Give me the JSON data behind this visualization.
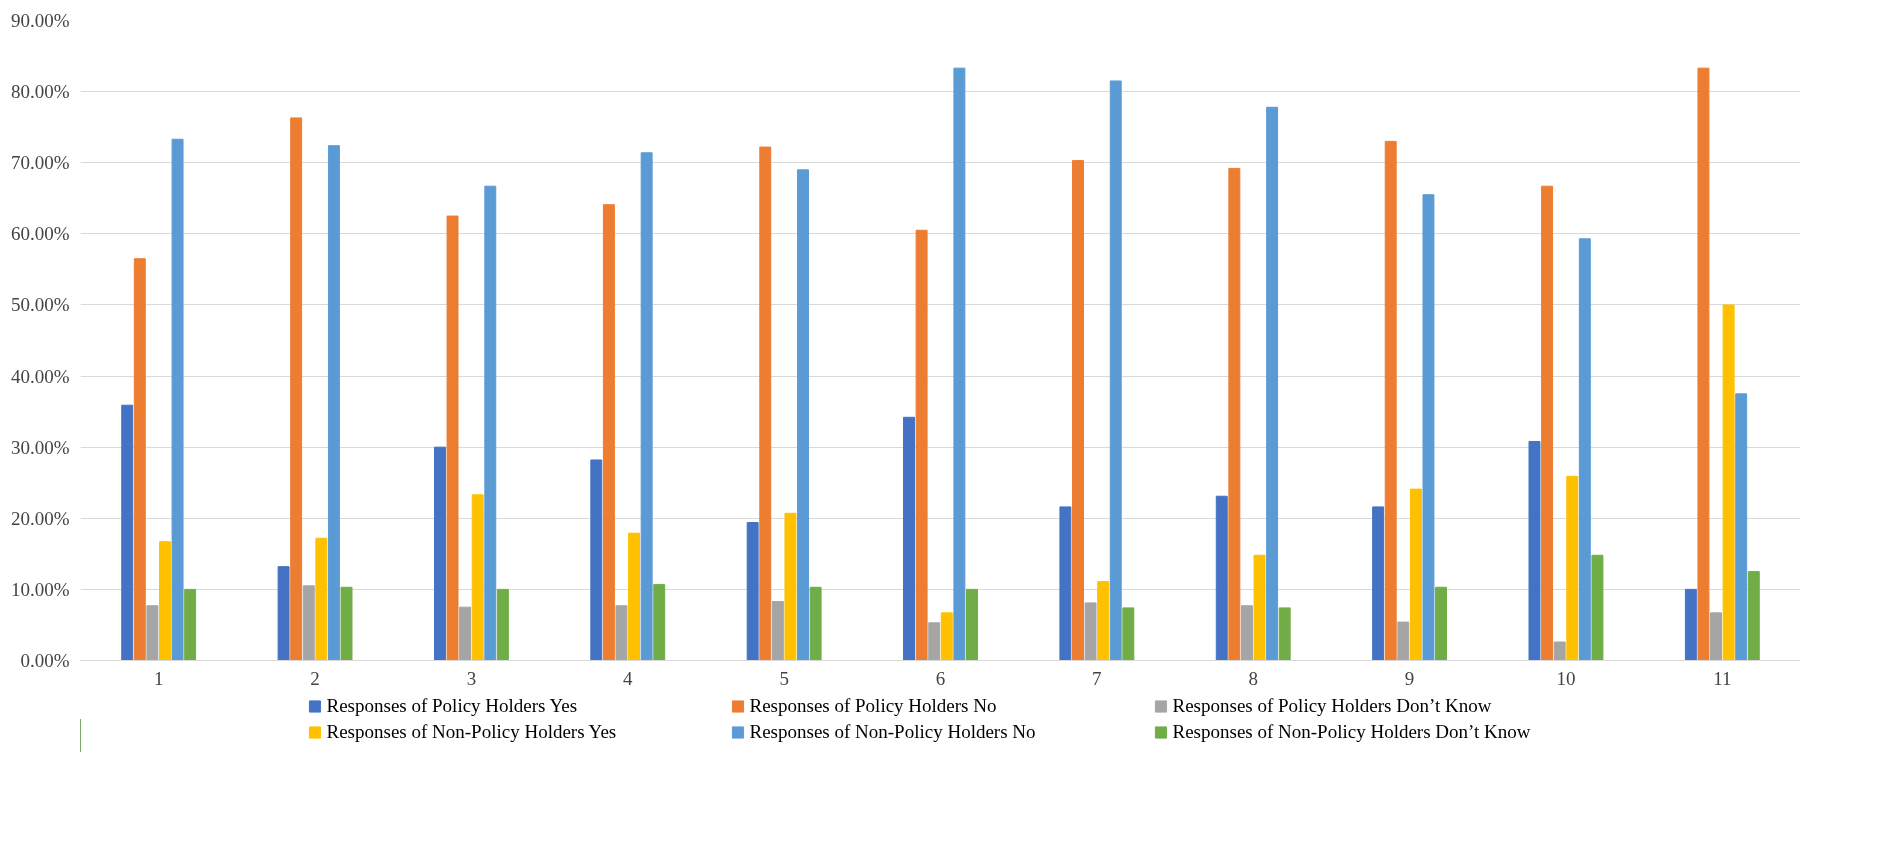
{
  "chart_data": {
    "type": "bar",
    "categories": [
      "1",
      "2",
      "3",
      "4",
      "5",
      "6",
      "7",
      "8",
      "9",
      "10",
      "11"
    ],
    "series": [
      {
        "name": "Responses of Policy Holders Yes",
        "color": "#4472c4",
        "values": [
          35.9,
          13.2,
          30.0,
          28.2,
          19.4,
          34.2,
          21.6,
          23.1,
          21.6,
          30.8,
          10.0
        ]
      },
      {
        "name": "Responses of Policy Holders No",
        "color": "#ed7d31",
        "values": [
          56.5,
          76.3,
          62.5,
          64.1,
          72.2,
          60.5,
          70.3,
          69.2,
          73.0,
          66.7,
          83.3
        ]
      },
      {
        "name": "Responses of Policy Holders Don’t Know",
        "color": "#a5a5a5",
        "values": [
          7.7,
          10.5,
          7.5,
          7.7,
          8.3,
          5.3,
          8.1,
          7.7,
          5.4,
          2.6,
          6.7
        ]
      },
      {
        "name": "Responses of Non-Policy Holders Yes",
        "color": "#ffc000",
        "values": [
          16.7,
          17.2,
          23.3,
          17.9,
          20.7,
          6.7,
          11.1,
          14.8,
          24.1,
          25.9,
          50.0
        ]
      },
      {
        "name": "Responses of Non-Policy Holders No",
        "color": "#5b9bd5",
        "values": [
          73.3,
          72.4,
          66.7,
          71.4,
          69.0,
          83.3,
          81.5,
          77.8,
          65.5,
          59.3,
          37.5
        ]
      },
      {
        "name": "Responses of Non-Policy Holders Don’t Know",
        "color": "#70ad47",
        "values": [
          10.0,
          10.3,
          10.0,
          10.7,
          10.3,
          10.0,
          7.4,
          7.4,
          10.3,
          14.8,
          12.5
        ]
      }
    ],
    "ylim": [
      0,
      90
    ],
    "yticks": [
      {
        "value": 0,
        "label": "0.00%"
      },
      {
        "value": 10,
        "label": "10.00%"
      },
      {
        "value": 20,
        "label": "20.00%"
      },
      {
        "value": 30,
        "label": "30.00%"
      },
      {
        "value": 40,
        "label": "40.00%"
      },
      {
        "value": 50,
        "label": "50.00%"
      },
      {
        "value": 60,
        "label": "60.00%"
      },
      {
        "value": 70,
        "label": "70.00%"
      },
      {
        "value": 80,
        "label": "80.00%"
      },
      {
        "value": 90,
        "label": "90.00%"
      }
    ],
    "grid": "y",
    "legend": "bottom"
  }
}
